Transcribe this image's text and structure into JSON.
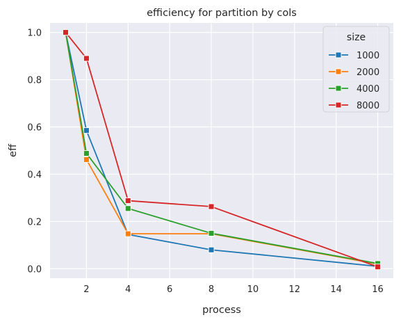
{
  "chart_data": {
    "type": "line",
    "title": "efficiency for partition by cols",
    "xlabel": "process",
    "ylabel": "eff",
    "x": [
      1,
      2,
      4,
      8,
      16
    ],
    "xlim": [
      0.25,
      16.75
    ],
    "ylim": [
      -0.04,
      1.04
    ],
    "xticks": [
      2,
      4,
      6,
      8,
      10,
      12,
      14,
      16
    ],
    "yticks": [
      0.0,
      0.2,
      0.4,
      0.6,
      0.8,
      1.0
    ],
    "xtick_labels": [
      "2",
      "4",
      "6",
      "8",
      "10",
      "12",
      "14",
      "16"
    ],
    "ytick_labels": [
      "0.0",
      "0.2",
      "0.4",
      "0.6",
      "0.8",
      "1.0"
    ],
    "grid": true,
    "marker": "square",
    "legend": {
      "title": "size",
      "placement": "top-right"
    },
    "series": [
      {
        "name": "1000",
        "color": "#1f77b4",
        "values": [
          1.0,
          0.585,
          0.145,
          0.08,
          0.01
        ]
      },
      {
        "name": "2000",
        "color": "#ff7f0e",
        "values": [
          1.0,
          0.462,
          0.148,
          0.148,
          0.02
        ]
      },
      {
        "name": "4000",
        "color": "#2ca02c",
        "values": [
          1.0,
          0.488,
          0.255,
          0.15,
          0.022
        ]
      },
      {
        "name": "8000",
        "color": "#d62728",
        "values": [
          1.0,
          0.89,
          0.288,
          0.263,
          0.008
        ]
      }
    ]
  }
}
